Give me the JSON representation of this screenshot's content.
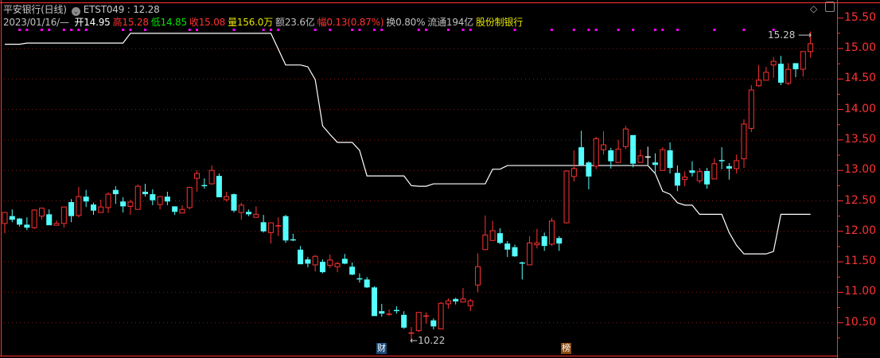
{
  "header": {
    "stock_name": "平安银行(日线)",
    "indicator": "ETST049 : 12.28",
    "date": "2023/01/16/—",
    "fields": [
      {
        "text": "开14.95",
        "color": "#ffffff"
      },
      {
        "text": "高15.28",
        "color": "#ff3232"
      },
      {
        "text": "低14.85",
        "color": "#00e600"
      },
      {
        "text": "收15.08",
        "color": "#ff3232"
      },
      {
        "text": "量156.0万",
        "color": "#e6e600"
      },
      {
        "text": "额23.6亿",
        "color": "#c0c0c0"
      },
      {
        "text": "幅0.13(0.87%)",
        "color": "#ff3232"
      },
      {
        "text": "换0.80%",
        "color": "#c0c0c0"
      },
      {
        "text": "流通194亿",
        "color": "#c0c0c0"
      },
      {
        "text": "股份制银行",
        "color": "#e6e600"
      }
    ]
  },
  "annotations": {
    "high_label": "15.28",
    "low_label": "10.22"
  },
  "markers": [
    {
      "text": "财",
      "bg": "#1a4a7a"
    },
    {
      "text": "榜",
      "bg": "#8a4a10"
    }
  ],
  "icons": {
    "diamond": "diamond-icon",
    "window": "window-toggle-icon",
    "indicator": "circle-chevron-icon"
  },
  "colors": {
    "up": "#ff3232",
    "down": "#54ffff",
    "flat": "#ffffff",
    "line": "#ffffff",
    "signal": "#ff00ff",
    "axis": "#ff3232",
    "grid": "#8b1a1a"
  },
  "chart_data": {
    "type": "candlestick",
    "y_axis": {
      "min": 10.2,
      "max": 15.55,
      "ticks": [
        "15.50",
        "15.00",
        "14.50",
        "14.00",
        "13.50",
        "13.00",
        "12.50",
        "12.00",
        "11.50",
        "11.00",
        "10.50"
      ],
      "position": "right"
    },
    "grid": true,
    "ohlc": [
      [
        12.13,
        12.31,
        11.97,
        12.31
      ],
      [
        12.25,
        12.36,
        12.15,
        12.19
      ],
      [
        12.21,
        12.22,
        12.08,
        12.11
      ],
      [
        12.11,
        12.23,
        12.02,
        12.06
      ],
      [
        12.06,
        12.36,
        12.04,
        12.35
      ],
      [
        12.25,
        12.39,
        12.19,
        12.38
      ],
      [
        12.28,
        12.36,
        12.1,
        12.1
      ],
      [
        12.1,
        12.18,
        12.1,
        12.13
      ],
      [
        12.13,
        12.4,
        12.06,
        12.4
      ],
      [
        12.48,
        12.53,
        12.15,
        12.25
      ],
      [
        12.26,
        12.73,
        12.23,
        12.57
      ],
      [
        12.57,
        12.68,
        12.4,
        12.49
      ],
      [
        12.44,
        12.47,
        12.27,
        12.34
      ],
      [
        12.31,
        12.52,
        12.31,
        12.4
      ],
      [
        12.39,
        12.64,
        12.3,
        12.61
      ],
      [
        12.68,
        12.74,
        12.45,
        12.61
      ],
      [
        12.49,
        12.56,
        12.31,
        12.41
      ],
      [
        12.41,
        12.52,
        12.27,
        12.48
      ],
      [
        12.36,
        12.77,
        12.36,
        12.74
      ],
      [
        12.65,
        12.78,
        12.57,
        12.61
      ],
      [
        12.61,
        12.69,
        12.43,
        12.51
      ],
      [
        12.44,
        12.58,
        12.36,
        12.57
      ],
      [
        12.57,
        12.65,
        12.43,
        12.49
      ],
      [
        12.41,
        12.41,
        12.27,
        12.32
      ],
      [
        12.3,
        12.43,
        12.3,
        12.36
      ],
      [
        12.39,
        12.73,
        12.36,
        12.72
      ],
      [
        12.87,
        13.0,
        12.65,
        12.95
      ],
      [
        12.75,
        12.87,
        12.7,
        12.74
      ],
      [
        12.78,
        13.08,
        12.77,
        13.0
      ],
      [
        12.91,
        12.95,
        12.56,
        12.56
      ],
      [
        12.52,
        12.65,
        12.49,
        12.57
      ],
      [
        12.61,
        12.62,
        12.31,
        12.34
      ],
      [
        12.31,
        12.47,
        12.19,
        12.43
      ],
      [
        12.32,
        12.36,
        12.25,
        12.28
      ],
      [
        12.23,
        12.41,
        12.23,
        12.28
      ],
      [
        12.15,
        12.27,
        11.98,
        12.0
      ],
      [
        11.98,
        12.14,
        11.8,
        12.14
      ],
      [
        12.08,
        12.23,
        11.92,
        12.09
      ],
      [
        12.25,
        12.27,
        11.81,
        11.85
      ],
      [
        11.86,
        11.96,
        11.84,
        11.85
      ],
      [
        11.7,
        11.76,
        11.46,
        11.46
      ],
      [
        11.54,
        11.58,
        11.41,
        11.47
      ],
      [
        11.45,
        11.61,
        11.34,
        11.59
      ],
      [
        11.5,
        11.54,
        11.31,
        11.33
      ],
      [
        11.44,
        11.62,
        11.4,
        11.53
      ],
      [
        11.42,
        11.5,
        11.33,
        11.47
      ],
      [
        11.55,
        11.63,
        11.46,
        11.47
      ],
      [
        11.42,
        11.49,
        11.28,
        11.29
      ],
      [
        11.22,
        11.31,
        11.16,
        11.21
      ],
      [
        11.21,
        11.25,
        11.07,
        11.08
      ],
      [
        11.08,
        11.1,
        10.61,
        10.61
      ],
      [
        10.69,
        10.81,
        10.6,
        10.65
      ],
      [
        10.63,
        10.72,
        10.61,
        10.64
      ],
      [
        10.7,
        10.77,
        10.65,
        10.69
      ],
      [
        10.63,
        10.69,
        10.4,
        10.42
      ],
      [
        10.32,
        10.43,
        10.22,
        10.33
      ],
      [
        10.37,
        10.67,
        10.35,
        10.67
      ],
      [
        10.6,
        10.67,
        10.48,
        10.61
      ],
      [
        10.54,
        10.57,
        10.39,
        10.44
      ],
      [
        10.4,
        10.84,
        10.39,
        10.82
      ],
      [
        10.81,
        10.9,
        10.73,
        10.86
      ],
      [
        10.89,
        10.91,
        10.8,
        10.85
      ],
      [
        10.84,
        11.07,
        10.84,
        10.89
      ],
      [
        10.78,
        10.89,
        10.69,
        10.86
      ],
      [
        11.12,
        11.64,
        11.0,
        11.42
      ],
      [
        11.7,
        12.26,
        11.7,
        11.94
      ],
      [
        11.85,
        12.17,
        11.85,
        12.01
      ],
      [
        11.97,
        12.05,
        11.79,
        11.81
      ],
      [
        11.8,
        11.84,
        11.58,
        11.7
      ],
      [
        11.74,
        11.78,
        11.58,
        11.59
      ],
      [
        11.48,
        11.5,
        11.21,
        11.47
      ],
      [
        11.45,
        11.92,
        11.45,
        11.81
      ],
      [
        11.78,
        12.04,
        11.72,
        11.81
      ],
      [
        11.92,
        11.98,
        11.68,
        11.76
      ],
      [
        11.79,
        12.22,
        11.76,
        12.17
      ],
      [
        11.89,
        11.92,
        11.68,
        11.8
      ],
      [
        12.14,
        13.0,
        12.13,
        12.99
      ],
      [
        12.9,
        13.33,
        12.82,
        13.03
      ],
      [
        13.38,
        13.65,
        13.08,
        13.09
      ],
      [
        13.13,
        13.15,
        12.69,
        12.9
      ],
      [
        13.07,
        13.55,
        13.02,
        13.52
      ],
      [
        13.34,
        13.64,
        13.26,
        13.42
      ],
      [
        13.33,
        13.37,
        13.03,
        13.15
      ],
      [
        13.13,
        13.5,
        13.13,
        13.35
      ],
      [
        13.39,
        13.73,
        13.35,
        13.68
      ],
      [
        13.58,
        13.58,
        13.05,
        13.11
      ],
      [
        13.13,
        13.34,
        13.13,
        13.24
      ],
      [
        13.22,
        13.39,
        13.09,
        13.22
      ],
      [
        13.13,
        13.28,
        12.96,
        13.09
      ],
      [
        13.0,
        13.38,
        13.0,
        13.34
      ],
      [
        13.33,
        13.46,
        12.95,
        13.04
      ],
      [
        12.96,
        13.08,
        12.66,
        12.75
      ],
      [
        12.85,
        12.98,
        12.74,
        12.89
      ],
      [
        13.0,
        13.15,
        12.9,
        12.96
      ],
      [
        12.83,
        13.04,
        12.79,
        12.98
      ],
      [
        12.99,
        13.04,
        12.7,
        12.77
      ],
      [
        12.86,
        13.2,
        12.86,
        13.11
      ],
      [
        13.16,
        13.38,
        13.02,
        13.15
      ],
      [
        13.07,
        13.12,
        12.85,
        13.03
      ],
      [
        13.03,
        13.26,
        12.95,
        13.16
      ],
      [
        13.19,
        13.84,
        13.04,
        13.76
      ],
      [
        13.69,
        14.4,
        13.63,
        14.32
      ],
      [
        14.39,
        14.73,
        14.37,
        14.48
      ],
      [
        14.48,
        14.7,
        14.48,
        14.61
      ],
      [
        14.73,
        14.86,
        14.52,
        14.79
      ],
      [
        14.75,
        14.88,
        14.4,
        14.44
      ],
      [
        14.43,
        14.76,
        14.4,
        14.66
      ],
      [
        14.76,
        14.76,
        14.53,
        14.66
      ],
      [
        14.66,
        14.95,
        14.54,
        14.95
      ],
      [
        14.95,
        15.28,
        14.85,
        15.08
      ]
    ],
    "series": [
      {
        "name": "ETST049",
        "values": [
          15.07,
          15.07,
          15.07,
          15.09,
          15.09,
          15.09,
          15.09,
          15.09,
          15.09,
          15.09,
          15.09,
          15.09,
          15.09,
          15.09,
          15.09,
          15.09,
          15.09,
          15.25,
          15.25,
          15.25,
          15.25,
          15.25,
          15.25,
          15.25,
          15.25,
          15.25,
          15.25,
          15.25,
          15.25,
          15.25,
          15.25,
          15.25,
          15.25,
          15.25,
          15.25,
          15.25,
          15.25,
          14.99,
          14.73,
          14.73,
          14.73,
          14.7,
          14.49,
          13.73,
          13.59,
          13.46,
          13.46,
          13.46,
          13.33,
          12.91,
          12.91,
          12.91,
          12.91,
          12.91,
          12.91,
          12.75,
          12.74,
          12.74,
          12.78,
          12.78,
          12.78,
          12.78,
          12.78,
          12.78,
          12.78,
          12.78,
          13.02,
          13.02,
          13.08,
          13.08,
          13.08,
          13.08,
          13.08,
          13.08,
          13.08,
          13.08,
          13.08,
          13.08,
          13.08,
          13.08,
          13.08,
          13.08,
          13.08,
          13.08,
          13.08,
          13.08,
          13.08,
          13.08,
          12.95,
          12.66,
          12.61,
          12.47,
          12.43,
          12.43,
          12.28,
          12.28,
          12.28,
          12.28,
          11.98,
          11.77,
          11.63,
          11.63,
          11.63,
          11.63,
          11.67,
          12.28,
          12.28,
          12.28,
          12.28,
          12.28
        ]
      }
    ],
    "signal_indices": [
      2,
      3,
      5,
      6,
      8,
      9,
      10,
      11,
      16,
      17,
      19,
      25,
      26,
      31,
      35,
      36,
      37,
      42,
      44,
      47,
      48,
      50,
      51,
      56,
      57,
      60,
      62,
      63,
      69,
      74,
      77,
      79,
      80,
      83,
      85,
      88,
      89,
      91,
      96,
      100,
      104
    ]
  }
}
